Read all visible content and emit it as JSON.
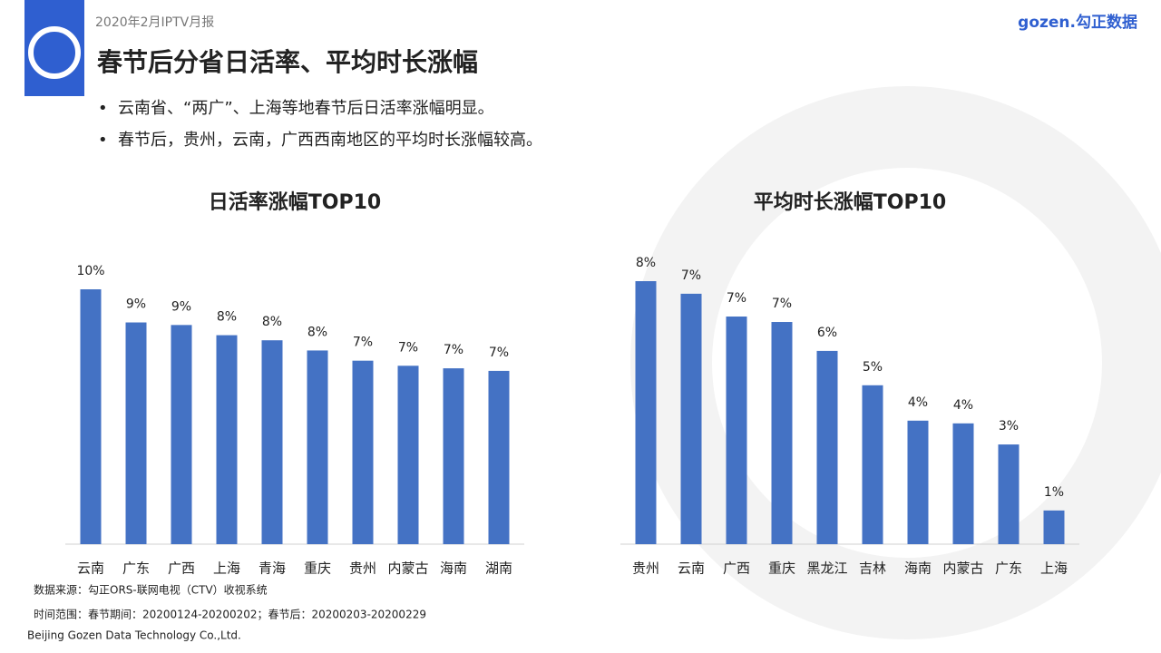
{
  "header": {
    "report": "2020年2月IPTV月报",
    "title": "春节后分省日活率、平均时长涨幅",
    "brand": "gozen.勾正数据"
  },
  "bullets": [
    "云南省、“两广”、上海等地春节后日活率涨幅明显。",
    "春节后，贵州，云南，广西西南地区的平均时长涨幅较高。"
  ],
  "footer": {
    "source": "数据来源：勾正ORS-联网电视（CTV）收视系统",
    "period": "时间范围：春节期间：20200124-20200202；春节后：20200203-20200229",
    "company": "Beijing Gozen Data Technology Co.,Ltd."
  },
  "chart_data": [
    {
      "type": "bar",
      "title": "日活率涨幅TOP10",
      "color": "#4472c4",
      "categories": [
        "云南",
        "广东",
        "广西",
        "上海",
        "青海",
        "重庆",
        "贵州",
        "内蒙古",
        "海南",
        "湖南"
      ],
      "values": [
        10.0,
        8.7,
        8.6,
        8.2,
        8.0,
        7.6,
        7.2,
        7.0,
        6.9,
        6.8
      ],
      "value_labels": [
        "10%",
        "9%",
        "9%",
        "8%",
        "8%",
        "8%",
        "7%",
        "7%",
        "7%",
        "7%"
      ]
    },
    {
      "type": "bar",
      "title": "平均时长涨幅TOP10",
      "color": "#4472c4",
      "categories": [
        "贵州",
        "云南",
        "广西",
        "重庆",
        "黑龙江",
        "吉林",
        "海南",
        "内蒙古",
        "广东",
        "上海"
      ],
      "values": [
        7.73,
        7.36,
        6.69,
        6.53,
        5.68,
        4.67,
        3.63,
        3.55,
        2.93,
        0.99
      ],
      "value_labels": [
        "8%",
        "7%",
        "7%",
        "7%",
        "6%",
        "5%",
        "4%",
        "4%",
        "3%",
        "1%"
      ]
    }
  ]
}
